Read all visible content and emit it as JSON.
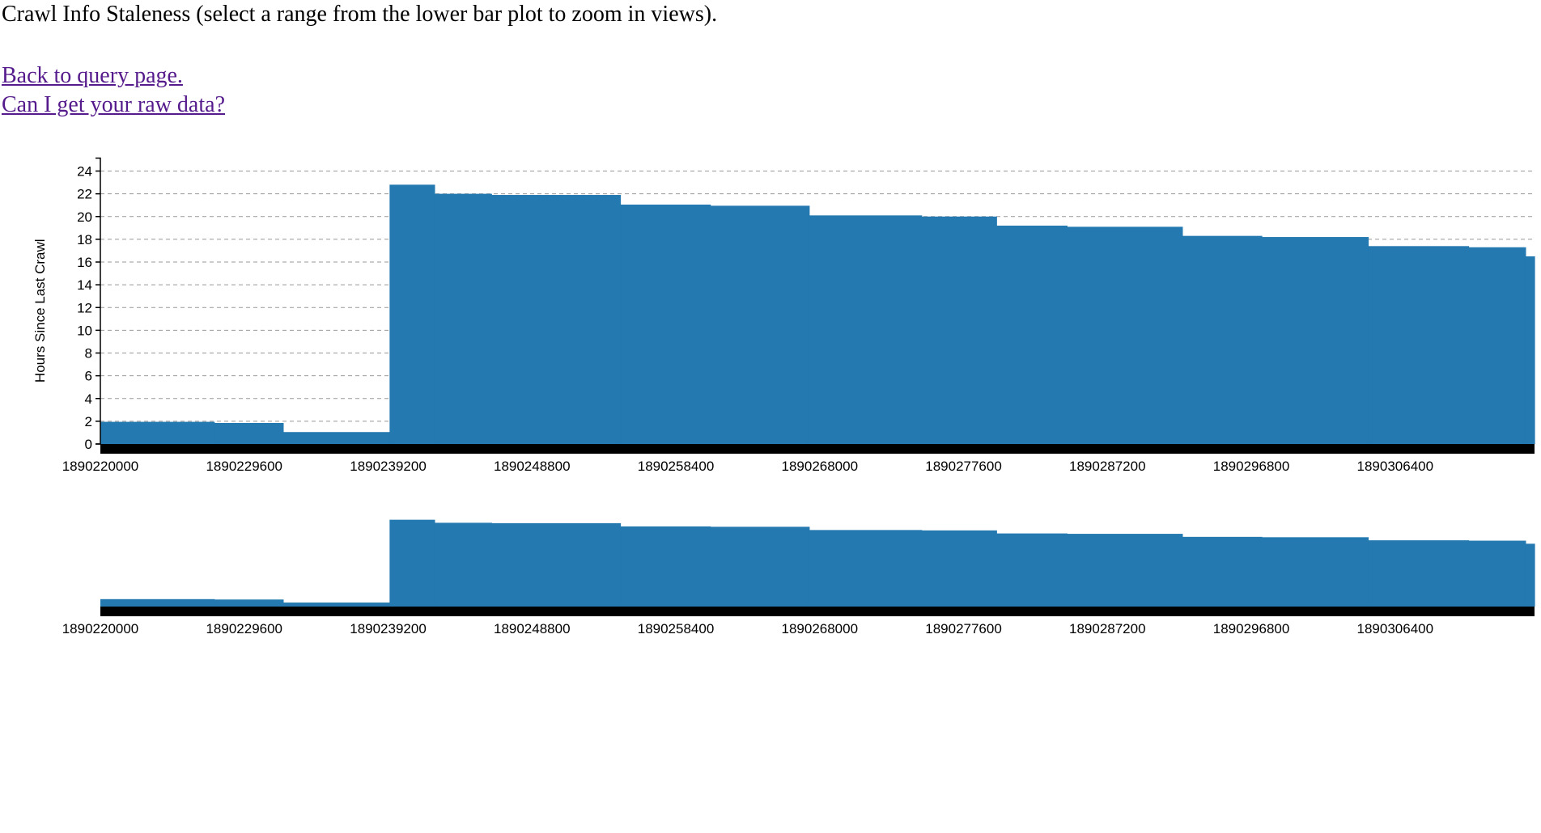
{
  "page": {
    "heading": "Crawl Info Staleness (select a range from the lower bar plot to zoom in views).",
    "links": [
      {
        "label": "Back to query page."
      },
      {
        "label": "Can I get your raw data?"
      }
    ]
  },
  "colors": {
    "bar": "#2479b0",
    "axis_band": "#000000",
    "grid": "#999999",
    "link": "#551a8b"
  },
  "chart_data": [
    {
      "type": "bar",
      "name": "focus",
      "ylabel": "Hours Since Last Crawl",
      "xlabel": "",
      "ylim": [
        0,
        24
      ],
      "xlim": [
        1890220000,
        1890315700
      ],
      "grid": true,
      "yticks": [
        0,
        2,
        4,
        6,
        8,
        10,
        12,
        14,
        16,
        18,
        20,
        22,
        24
      ],
      "xticks": [
        1890220000,
        1890229600,
        1890239200,
        1890248800,
        1890258400,
        1890268000,
        1890277600,
        1890287200,
        1890296800,
        1890306400
      ],
      "xticklabels": [
        "1890220000",
        "1890229600",
        "1890239200",
        "1890248800",
        "1890258400",
        "1890268000",
        "1890277600",
        "1890287200",
        "1890296800",
        "1890306400"
      ],
      "bars": [
        {
          "x0": 1890220000,
          "x1": 1890227600,
          "value": 1.95
        },
        {
          "x0": 1890227600,
          "x1": 1890232200,
          "value": 1.85
        },
        {
          "x0": 1890232200,
          "x1": 1890239300,
          "value": 1.05
        },
        {
          "x0": 1890239300,
          "x1": 1890242300,
          "value": 22.8
        },
        {
          "x0": 1890242300,
          "x1": 1890246100,
          "value": 22.0
        },
        {
          "x0": 1890246100,
          "x1": 1890254700,
          "value": 21.9
        },
        {
          "x0": 1890254700,
          "x1": 1890260700,
          "value": 21.05
        },
        {
          "x0": 1890260700,
          "x1": 1890267300,
          "value": 20.95
        },
        {
          "x0": 1890267300,
          "x1": 1890274800,
          "value": 20.1
        },
        {
          "x0": 1890274800,
          "x1": 1890279800,
          "value": 20.0
        },
        {
          "x0": 1890279800,
          "x1": 1890284500,
          "value": 19.2
        },
        {
          "x0": 1890284500,
          "x1": 1890292200,
          "value": 19.1
        },
        {
          "x0": 1890292200,
          "x1": 1890297500,
          "value": 18.3
        },
        {
          "x0": 1890297500,
          "x1": 1890304600,
          "value": 18.2
        },
        {
          "x0": 1890304600,
          "x1": 1890311300,
          "value": 17.4
        },
        {
          "x0": 1890311300,
          "x1": 1890315100,
          "value": 17.3
        },
        {
          "x0": 1890315100,
          "x1": 1890315700,
          "value": 16.5
        }
      ]
    },
    {
      "type": "bar",
      "name": "context",
      "xlim": [
        1890220000,
        1890315700
      ],
      "ylim": [
        0,
        24
      ],
      "grid": false,
      "xticks": [
        1890220000,
        1890229600,
        1890239200,
        1890248800,
        1890258400,
        1890268000,
        1890277600,
        1890287200,
        1890296800,
        1890306400
      ],
      "xticklabels": [
        "1890220000",
        "1890229600",
        "1890239200",
        "1890248800",
        "1890258400",
        "1890268000",
        "1890277600",
        "1890287200",
        "1890296800",
        "1890306400"
      ],
      "bars": [
        {
          "x0": 1890220000,
          "x1": 1890227600,
          "value": 1.95
        },
        {
          "x0": 1890227600,
          "x1": 1890232200,
          "value": 1.85
        },
        {
          "x0": 1890232200,
          "x1": 1890239300,
          "value": 1.05
        },
        {
          "x0": 1890239300,
          "x1": 1890242300,
          "value": 22.8
        },
        {
          "x0": 1890242300,
          "x1": 1890246100,
          "value": 22.0
        },
        {
          "x0": 1890246100,
          "x1": 1890254700,
          "value": 21.9
        },
        {
          "x0": 1890254700,
          "x1": 1890260700,
          "value": 21.05
        },
        {
          "x0": 1890260700,
          "x1": 1890267300,
          "value": 20.95
        },
        {
          "x0": 1890267300,
          "x1": 1890274800,
          "value": 20.1
        },
        {
          "x0": 1890274800,
          "x1": 1890279800,
          "value": 20.0
        },
        {
          "x0": 1890279800,
          "x1": 1890284500,
          "value": 19.2
        },
        {
          "x0": 1890284500,
          "x1": 1890292200,
          "value": 19.1
        },
        {
          "x0": 1890292200,
          "x1": 1890297500,
          "value": 18.3
        },
        {
          "x0": 1890297500,
          "x1": 1890304600,
          "value": 18.2
        },
        {
          "x0": 1890304600,
          "x1": 1890311300,
          "value": 17.4
        },
        {
          "x0": 1890311300,
          "x1": 1890315100,
          "value": 17.3
        },
        {
          "x0": 1890315100,
          "x1": 1890315700,
          "value": 16.5
        }
      ]
    }
  ]
}
